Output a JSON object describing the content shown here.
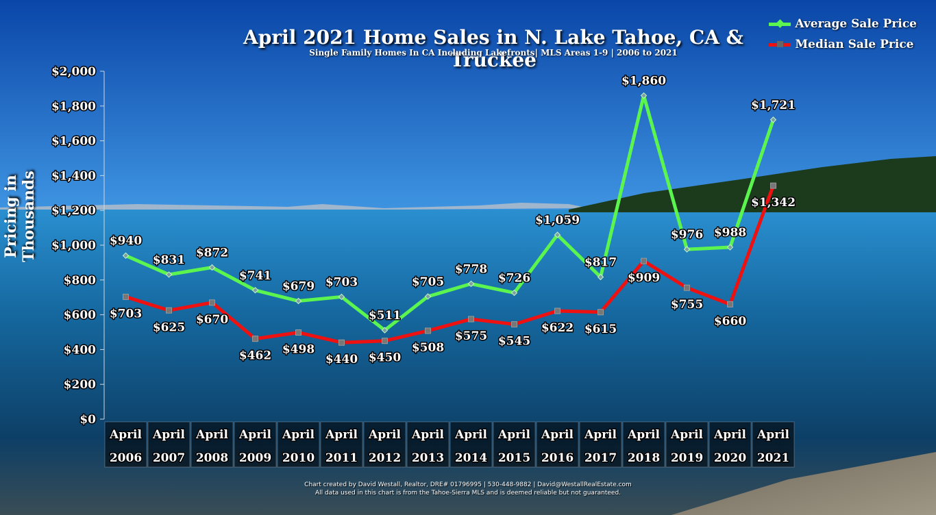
{
  "colors": {
    "average": "#5cf550",
    "median": "#ee1111",
    "sky_top": "#0a4fb8",
    "sky_bottom": "#3a8fe0",
    "water_top": "#1d86c8",
    "water_bottom": "#0b3660",
    "shore": "#8a8070",
    "x_cell": "#000000"
  },
  "icons": {
    "average_marker": "diamond-icon",
    "median_marker": "square-icon"
  },
  "chart_data": {
    "type": "line",
    "title": "April 2021 Home Sales in N. Lake Tahoe, CA & Truckee",
    "subtitle": "Single Family Homes In CA Including Lakefronts| MLS Areas 1-9 | 2006 to 2021",
    "xlabel": "",
    "ylabel": "Pricing in Thousands",
    "ylim": [
      0,
      2000
    ],
    "y_ticks": [
      "$0",
      "$200",
      "$400",
      "$600",
      "$800",
      "$1,000",
      "$1,200",
      "$1,400",
      "$1,600",
      "$1,800",
      "$2,000"
    ],
    "categories": [
      [
        "April",
        "2006"
      ],
      [
        "April",
        "2007"
      ],
      [
        "April",
        "2008"
      ],
      [
        "April",
        "2009"
      ],
      [
        "April",
        "2010"
      ],
      [
        "April",
        "2011"
      ],
      [
        "April",
        "2012"
      ],
      [
        "April",
        "2013"
      ],
      [
        "April",
        "2014"
      ],
      [
        "April",
        "2015"
      ],
      [
        "April",
        "2016"
      ],
      [
        "April",
        "2017"
      ],
      [
        "April",
        "2018"
      ],
      [
        "April",
        "2019"
      ],
      [
        "April",
        "2020"
      ],
      [
        "April",
        "2021"
      ]
    ],
    "legend_position": "top-right",
    "grid": false,
    "series": [
      {
        "name": "Average Sale Price",
        "values": [
          940,
          831,
          872,
          741,
          679,
          703,
          511,
          705,
          778,
          726,
          1059,
          817,
          1860,
          976,
          988,
          1721
        ],
        "labels": [
          "$940",
          "$831",
          "$872",
          "$741",
          "$679",
          "$703",
          "$511",
          "$705",
          "$778",
          "$726",
          "$1,059",
          "$817",
          "$1,860",
          "$976",
          "$988",
          "$1,721"
        ]
      },
      {
        "name": "Median Sale Price",
        "values": [
          703,
          625,
          670,
          462,
          498,
          440,
          450,
          508,
          575,
          545,
          622,
          615,
          909,
          755,
          660,
          1342
        ],
        "labels": [
          "$703",
          "$625",
          "$670",
          "$462",
          "$498",
          "$440",
          "$450",
          "$508",
          "$575",
          "$545",
          "$622",
          "$615",
          "$909",
          "$755",
          "$660",
          "$1,342"
        ]
      }
    ]
  },
  "footer": {
    "line1": "Chart created by David Westall, Realtor, DRE# 01796995 | 530-448-9882 | David@WestallRealEstate.com",
    "line2": "All data used in this chart is from the Tahoe-Sierra MLS and is deemed reliable but  not guaranteed."
  }
}
